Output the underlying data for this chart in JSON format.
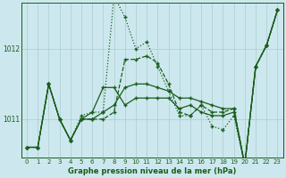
{
  "background_color": "#cce8ee",
  "grid_color": "#aacccc",
  "line_color": "#1a5c1a",
  "ylim": [
    1010.45,
    1012.65
  ],
  "yticks": [
    1011.0,
    1012.0
  ],
  "xticks": [
    0,
    1,
    2,
    3,
    4,
    5,
    6,
    7,
    8,
    9,
    10,
    11,
    12,
    13,
    14,
    15,
    16,
    17,
    18,
    19,
    20,
    21,
    22,
    23
  ],
  "xlabel": "Graphe pression niveau de la mer (hPa)",
  "s1": [
    1010.6,
    1010.6,
    1011.5,
    1011.0,
    1010.7,
    1011.05,
    1011.1,
    1011.1,
    1012.75,
    1012.45,
    1012.0,
    1012.1,
    1011.75,
    1011.4,
    1011.05,
    1011.05,
    1011.2,
    1010.9,
    1010.85,
    1011.05,
    1010.35,
    1011.75,
    1012.05,
    1012.55
  ],
  "s2": [
    1010.6,
    1010.6,
    1011.5,
    1011.0,
    1010.7,
    1011.0,
    1011.1,
    1011.45,
    1011.45,
    1011.2,
    1011.3,
    1011.3,
    1011.3,
    1011.3,
    1011.15,
    1011.2,
    1011.1,
    1011.05,
    1011.05,
    1011.1,
    1010.35,
    1011.75,
    1012.05,
    1012.55
  ],
  "s3": [
    1010.6,
    1010.6,
    1011.5,
    1011.0,
    1010.7,
    1011.0,
    1011.0,
    1011.1,
    1011.2,
    1011.45,
    1011.5,
    1011.5,
    1011.45,
    1011.4,
    1011.3,
    1011.3,
    1011.25,
    1011.2,
    1011.15,
    1011.15,
    1010.35,
    1011.75,
    1012.05,
    1012.55
  ],
  "s4": [
    1010.6,
    1010.6,
    1011.5,
    1011.0,
    1010.7,
    1011.0,
    1011.0,
    1011.0,
    1011.1,
    1011.85,
    1011.85,
    1011.9,
    1011.8,
    1011.5,
    1011.1,
    1011.05,
    1011.2,
    1011.1,
    1011.1,
    1011.15,
    1010.35,
    1011.75,
    1012.05,
    1012.55
  ]
}
